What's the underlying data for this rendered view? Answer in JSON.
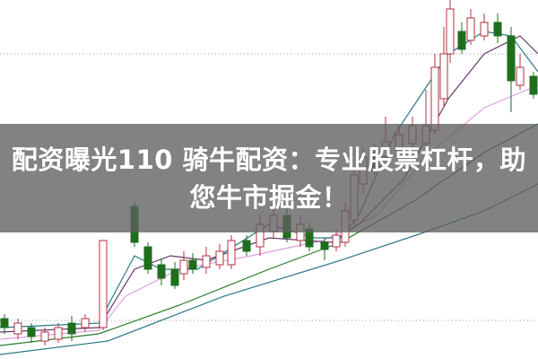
{
  "headline": {
    "text": "配资曝光110 骑牛配资：专业股票杠杆，助您牛市掘金！"
  },
  "colors": {
    "up_candle": "#b03040",
    "down_candle": "#1e6e1e",
    "ma_short": "#2a7a8a",
    "ma_mid": "#6a3a6a",
    "ma_long_pink": "#e0a0e0",
    "ma_green": "#2a7a2a",
    "ma_teal": "#2a7a8a",
    "overlay": "#5f5f5f",
    "title_text": "#ffffff"
  }
}
